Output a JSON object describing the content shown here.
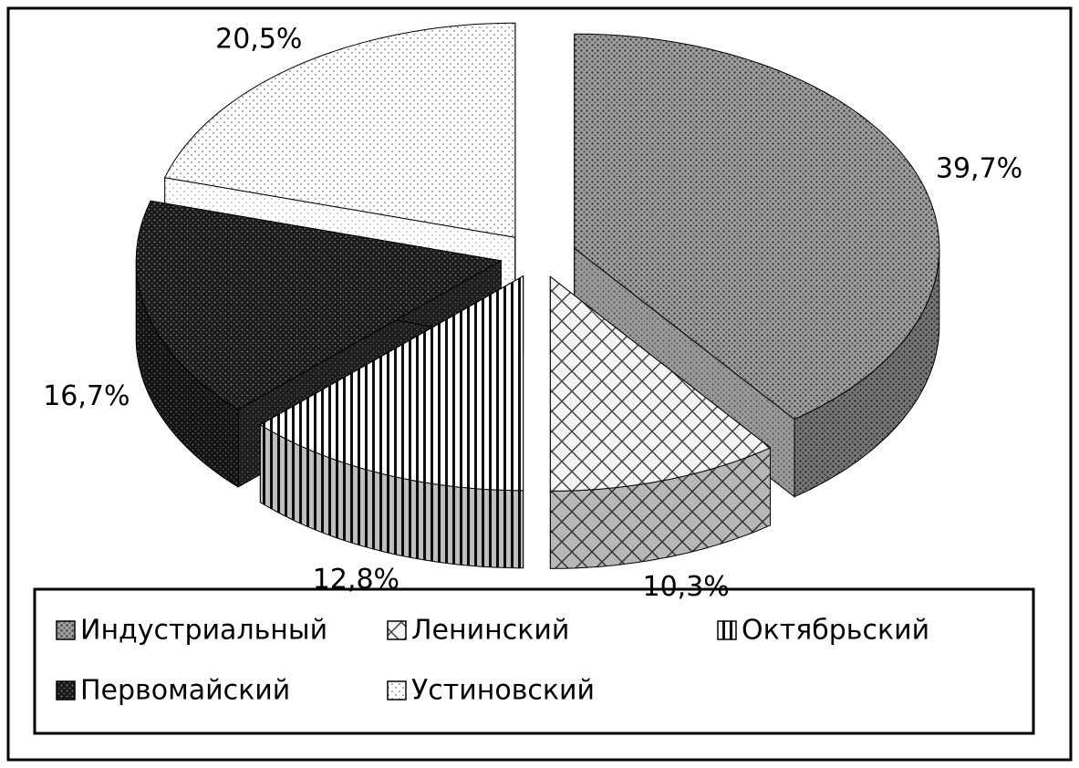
{
  "chart_data": {
    "type": "pie3d",
    "categories": [
      "Индустриальный",
      "Ленинский",
      "Октябрьский",
      "Первомайский",
      "Устиновский"
    ],
    "values": [
      39.7,
      10.3,
      12.8,
      16.7,
      20.5
    ],
    "value_labels": [
      "39,7%",
      "10,3%",
      "12,8%",
      "16,7%",
      "20,5%"
    ],
    "colors": [
      "#9a9a9a",
      "#f2f2f2",
      "#ffffff",
      "#222222",
      "#ffffff"
    ],
    "legend": "bottom"
  }
}
